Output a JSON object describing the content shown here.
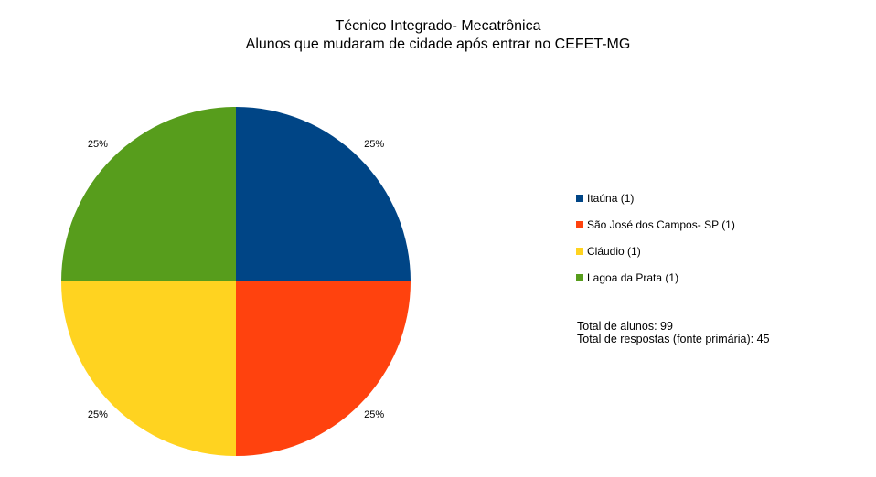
{
  "chart_data": {
    "type": "pie",
    "title": "Técnico Integrado-  Mecatrônica",
    "subtitle": "Alunos que mudaram de cidade após entrar no CEFET-MG",
    "slices": [
      {
        "label": "Itaúna (1)",
        "value": 1,
        "percent_label": "25%",
        "color": "#004586"
      },
      {
        "label": "São José dos Campos- SP (1)",
        "value": 1,
        "percent_label": "25%",
        "color": "#ff420e"
      },
      {
        "label": "Cláudio (1)",
        "value": 1,
        "percent_label": "25%",
        "color": "#ffd320"
      },
      {
        "label": "Lagoa da Prata (1)",
        "value": 1,
        "percent_label": "25%",
        "color": "#579d1c"
      }
    ],
    "legend_position": "right"
  },
  "notes": {
    "total_students": "Total de alunos: 99",
    "total_responses": "Total de respostas (fonte primária): 45"
  }
}
